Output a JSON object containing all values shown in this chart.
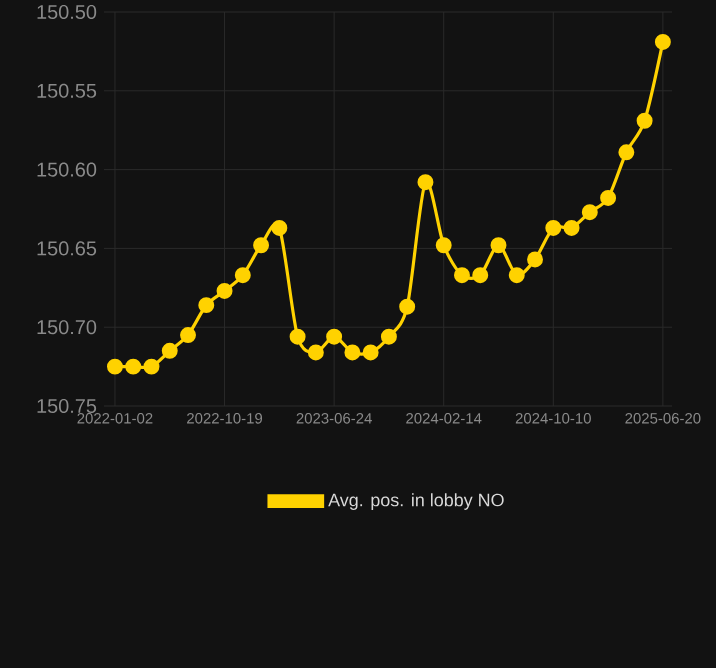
{
  "chart_data": {
    "type": "line",
    "categories": [
      "2022-01-02",
      null,
      null,
      null,
      null,
      null,
      "2022-10-19",
      null,
      null,
      null,
      null,
      null,
      "2023-06-24",
      null,
      null,
      null,
      null,
      null,
      "2024-02-14",
      null,
      null,
      null,
      null,
      null,
      "2024-10-10",
      null,
      null,
      null,
      null,
      null,
      "2025-06-20"
    ],
    "series": [
      {
        "name": "Avg. pos. in lobby NO",
        "color": "#ffd200",
        "values": [
          150.725,
          150.725,
          150.725,
          150.715,
          150.705,
          150.686,
          150.677,
          150.667,
          150.648,
          150.637,
          150.706,
          150.716,
          150.706,
          150.716,
          150.716,
          150.706,
          150.687,
          150.608,
          150.648,
          150.667,
          150.667,
          150.648,
          150.667,
          150.657,
          150.637,
          150.637,
          150.627,
          150.618,
          150.589,
          150.569,
          150.519
        ]
      }
    ],
    "ylim": [
      150.75,
      150.5
    ],
    "yticks": [
      {
        "value": 150.5,
        "label": "150.50"
      },
      {
        "value": 150.55,
        "label": "150.55"
      },
      {
        "value": 150.6,
        "label": "150.60"
      },
      {
        "value": 150.65,
        "label": "150.65"
      },
      {
        "value": 150.7,
        "label": "150.70"
      },
      {
        "value": 150.75,
        "label": "150.75"
      }
    ],
    "grid": true,
    "legend": "bottom",
    "marker": "circle",
    "line_style": "solid"
  }
}
